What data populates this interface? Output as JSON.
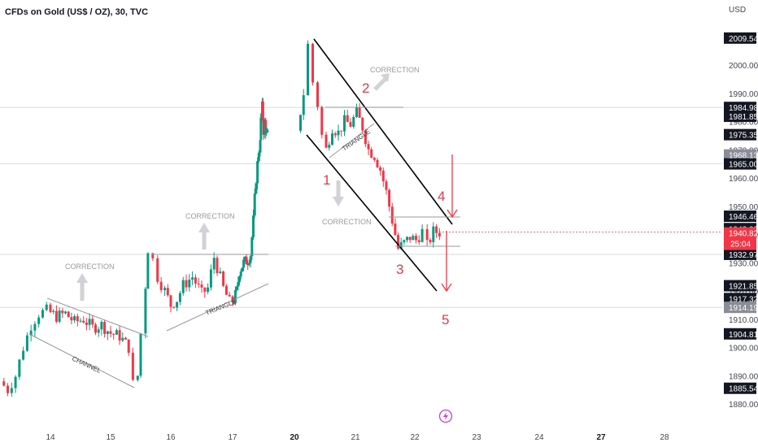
{
  "header": {
    "title": "CFDs on Gold (US$ / OZ), 30, TVC"
  },
  "axis": {
    "currency": "USD",
    "y_ticks": [
      2000.0,
      1990.0,
      1980.0,
      1970.0,
      1960.0,
      1950.0,
      1940.0,
      1930.0,
      1920.0,
      1910.0,
      1900.0,
      1890.0,
      1880.0
    ],
    "y_tick_labels": [
      "2000.00",
      "1990.00",
      "1980.00",
      "1970.00",
      "1960.00",
      "1950.00",
      "1940.00",
      "1930.00",
      "1920.00",
      "1910.00",
      "1900.00",
      "1890.00",
      "1880.00"
    ],
    "x_ticks": [
      {
        "label": "14",
        "day": 14
      },
      {
        "label": "15",
        "day": 15
      },
      {
        "label": "16",
        "day": 16
      },
      {
        "label": "17",
        "day": 17
      },
      {
        "label": "20",
        "day": 20
      },
      {
        "label": "21",
        "day": 21
      },
      {
        "label": "22",
        "day": 22
      },
      {
        "label": "23",
        "day": 23
      },
      {
        "label": "24",
        "day": 24
      },
      {
        "label": "27",
        "day": 27
      },
      {
        "label": "28",
        "day": 28
      }
    ]
  },
  "price_badges": [
    {
      "value": 2009.54,
      "label": "2009.54",
      "color": "#131722"
    },
    {
      "value": 1984.98,
      "label": "1984.98",
      "color": "#131722"
    },
    {
      "value": 1981.85,
      "label": "1981.85",
      "color": "#131722"
    },
    {
      "value": 1975.35,
      "label": "1975.35",
      "color": "#131722"
    },
    {
      "value": 1968.13,
      "label": "1968.13",
      "color": "#8a8d96"
    },
    {
      "value": 1965.0,
      "label": "1965.00",
      "color": "#131722"
    },
    {
      "value": 1946.46,
      "label": "1946.46",
      "color": "#131722"
    },
    {
      "value": 1942.08,
      "label": "1942.08",
      "color": "#131722"
    },
    {
      "value": 1932.97,
      "label": "1932.97",
      "color": "#131722"
    },
    {
      "value": 1921.85,
      "label": "1921.85",
      "color": "#131722"
    },
    {
      "value": 1917.32,
      "label": "1917.32",
      "color": "#131722"
    },
    {
      "value": 1914.19,
      "label": "1914.19",
      "color": "#8a8d96"
    },
    {
      "value": 1904.81,
      "label": "1904.81",
      "color": "#131722"
    },
    {
      "value": 1885.54,
      "label": "1885.54",
      "color": "#131722"
    }
  ],
  "current_price": {
    "value": 1940.82,
    "label": "1940.82",
    "countdown": "25:04",
    "color": "#f23645"
  },
  "horizontal_levels": [
    1984.98,
    1965.0,
    1932.97,
    1914.19
  ],
  "chart_data": {
    "type": "candlestick",
    "title": "CFDs on Gold (US$ / OZ), 30, TVC",
    "timeframe": "30",
    "y_unit": "USD",
    "ylim": [
      1877,
      2012
    ],
    "x_range": [
      13.35,
      28.85
    ],
    "grid": false,
    "up_color": "#089981",
    "down_color": "#f23645",
    "path": [
      [
        13.35,
        1888
      ],
      [
        13.45,
        1885
      ],
      [
        13.55,
        1890
      ],
      [
        13.65,
        1900
      ],
      [
        13.75,
        1908
      ],
      [
        13.85,
        1912
      ],
      [
        13.95,
        1913
      ],
      [
        14.1,
        1911
      ],
      [
        14.25,
        1912
      ],
      [
        14.4,
        1909
      ],
      [
        14.55,
        1910
      ],
      [
        14.7,
        1907
      ],
      [
        14.85,
        1908
      ],
      [
        15.0,
        1905
      ],
      [
        15.15,
        1904
      ],
      [
        15.3,
        1900
      ],
      [
        15.37,
        1887
      ],
      [
        15.45,
        1890
      ],
      [
        15.5,
        1905
      ],
      [
        15.58,
        1922
      ],
      [
        15.62,
        1935
      ],
      [
        15.7,
        1931
      ],
      [
        15.78,
        1925
      ],
      [
        15.9,
        1920
      ],
      [
        16.0,
        1915
      ],
      [
        16.1,
        1917
      ],
      [
        16.2,
        1922
      ],
      [
        16.35,
        1925
      ],
      [
        16.5,
        1919
      ],
      [
        16.6,
        1921
      ],
      [
        16.7,
        1932
      ],
      [
        16.85,
        1921
      ],
      [
        16.95,
        1916
      ],
      [
        17.05,
        1917
      ],
      [
        17.15,
        1920
      ],
      [
        17.25,
        1927
      ],
      [
        17.4,
        1930
      ],
      [
        17.55,
        1931
      ],
      [
        17.65,
        1933
      ],
      [
        17.75,
        1945
      ],
      [
        17.85,
        1960
      ],
      [
        17.95,
        1970
      ],
      [
        18.05,
        1980
      ],
      [
        18.15,
        1985
      ],
      [
        18.25,
        1977
      ],
      [
        18.35,
        1980
      ],
      [
        18.45,
        1975
      ],
      [
        18.55,
        1975
      ],
      [
        20.05,
        1977
      ],
      [
        20.15,
        1990
      ],
      [
        20.22,
        2007
      ],
      [
        20.3,
        1994
      ],
      [
        20.38,
        1986
      ],
      [
        20.45,
        1975
      ],
      [
        20.52,
        1970
      ],
      [
        20.62,
        1978
      ],
      [
        20.72,
        1976
      ],
      [
        20.82,
        1980
      ],
      [
        20.92,
        1979
      ],
      [
        21.02,
        1983
      ],
      [
        21.12,
        1978
      ],
      [
        21.22,
        1970
      ],
      [
        21.32,
        1968
      ],
      [
        21.42,
        1963
      ],
      [
        21.52,
        1955
      ],
      [
        21.62,
        1945
      ],
      [
        21.72,
        1935
      ],
      [
        21.82,
        1937
      ],
      [
        21.92,
        1939
      ],
      [
        22.02,
        1938
      ],
      [
        22.12,
        1941
      ],
      [
        22.2,
        1936
      ],
      [
        22.3,
        1941
      ],
      [
        22.4,
        1940.8
      ]
    ],
    "annotations": {
      "waves": [
        "1",
        "2",
        "3",
        "4",
        "5"
      ],
      "labels": [
        "CORRECTION",
        "CORRECTION",
        "CORRECTION",
        "CORRECTION"
      ],
      "patterns": [
        "CHANNEL",
        "TRIANGLE",
        "TRIANGLE"
      ]
    }
  }
}
